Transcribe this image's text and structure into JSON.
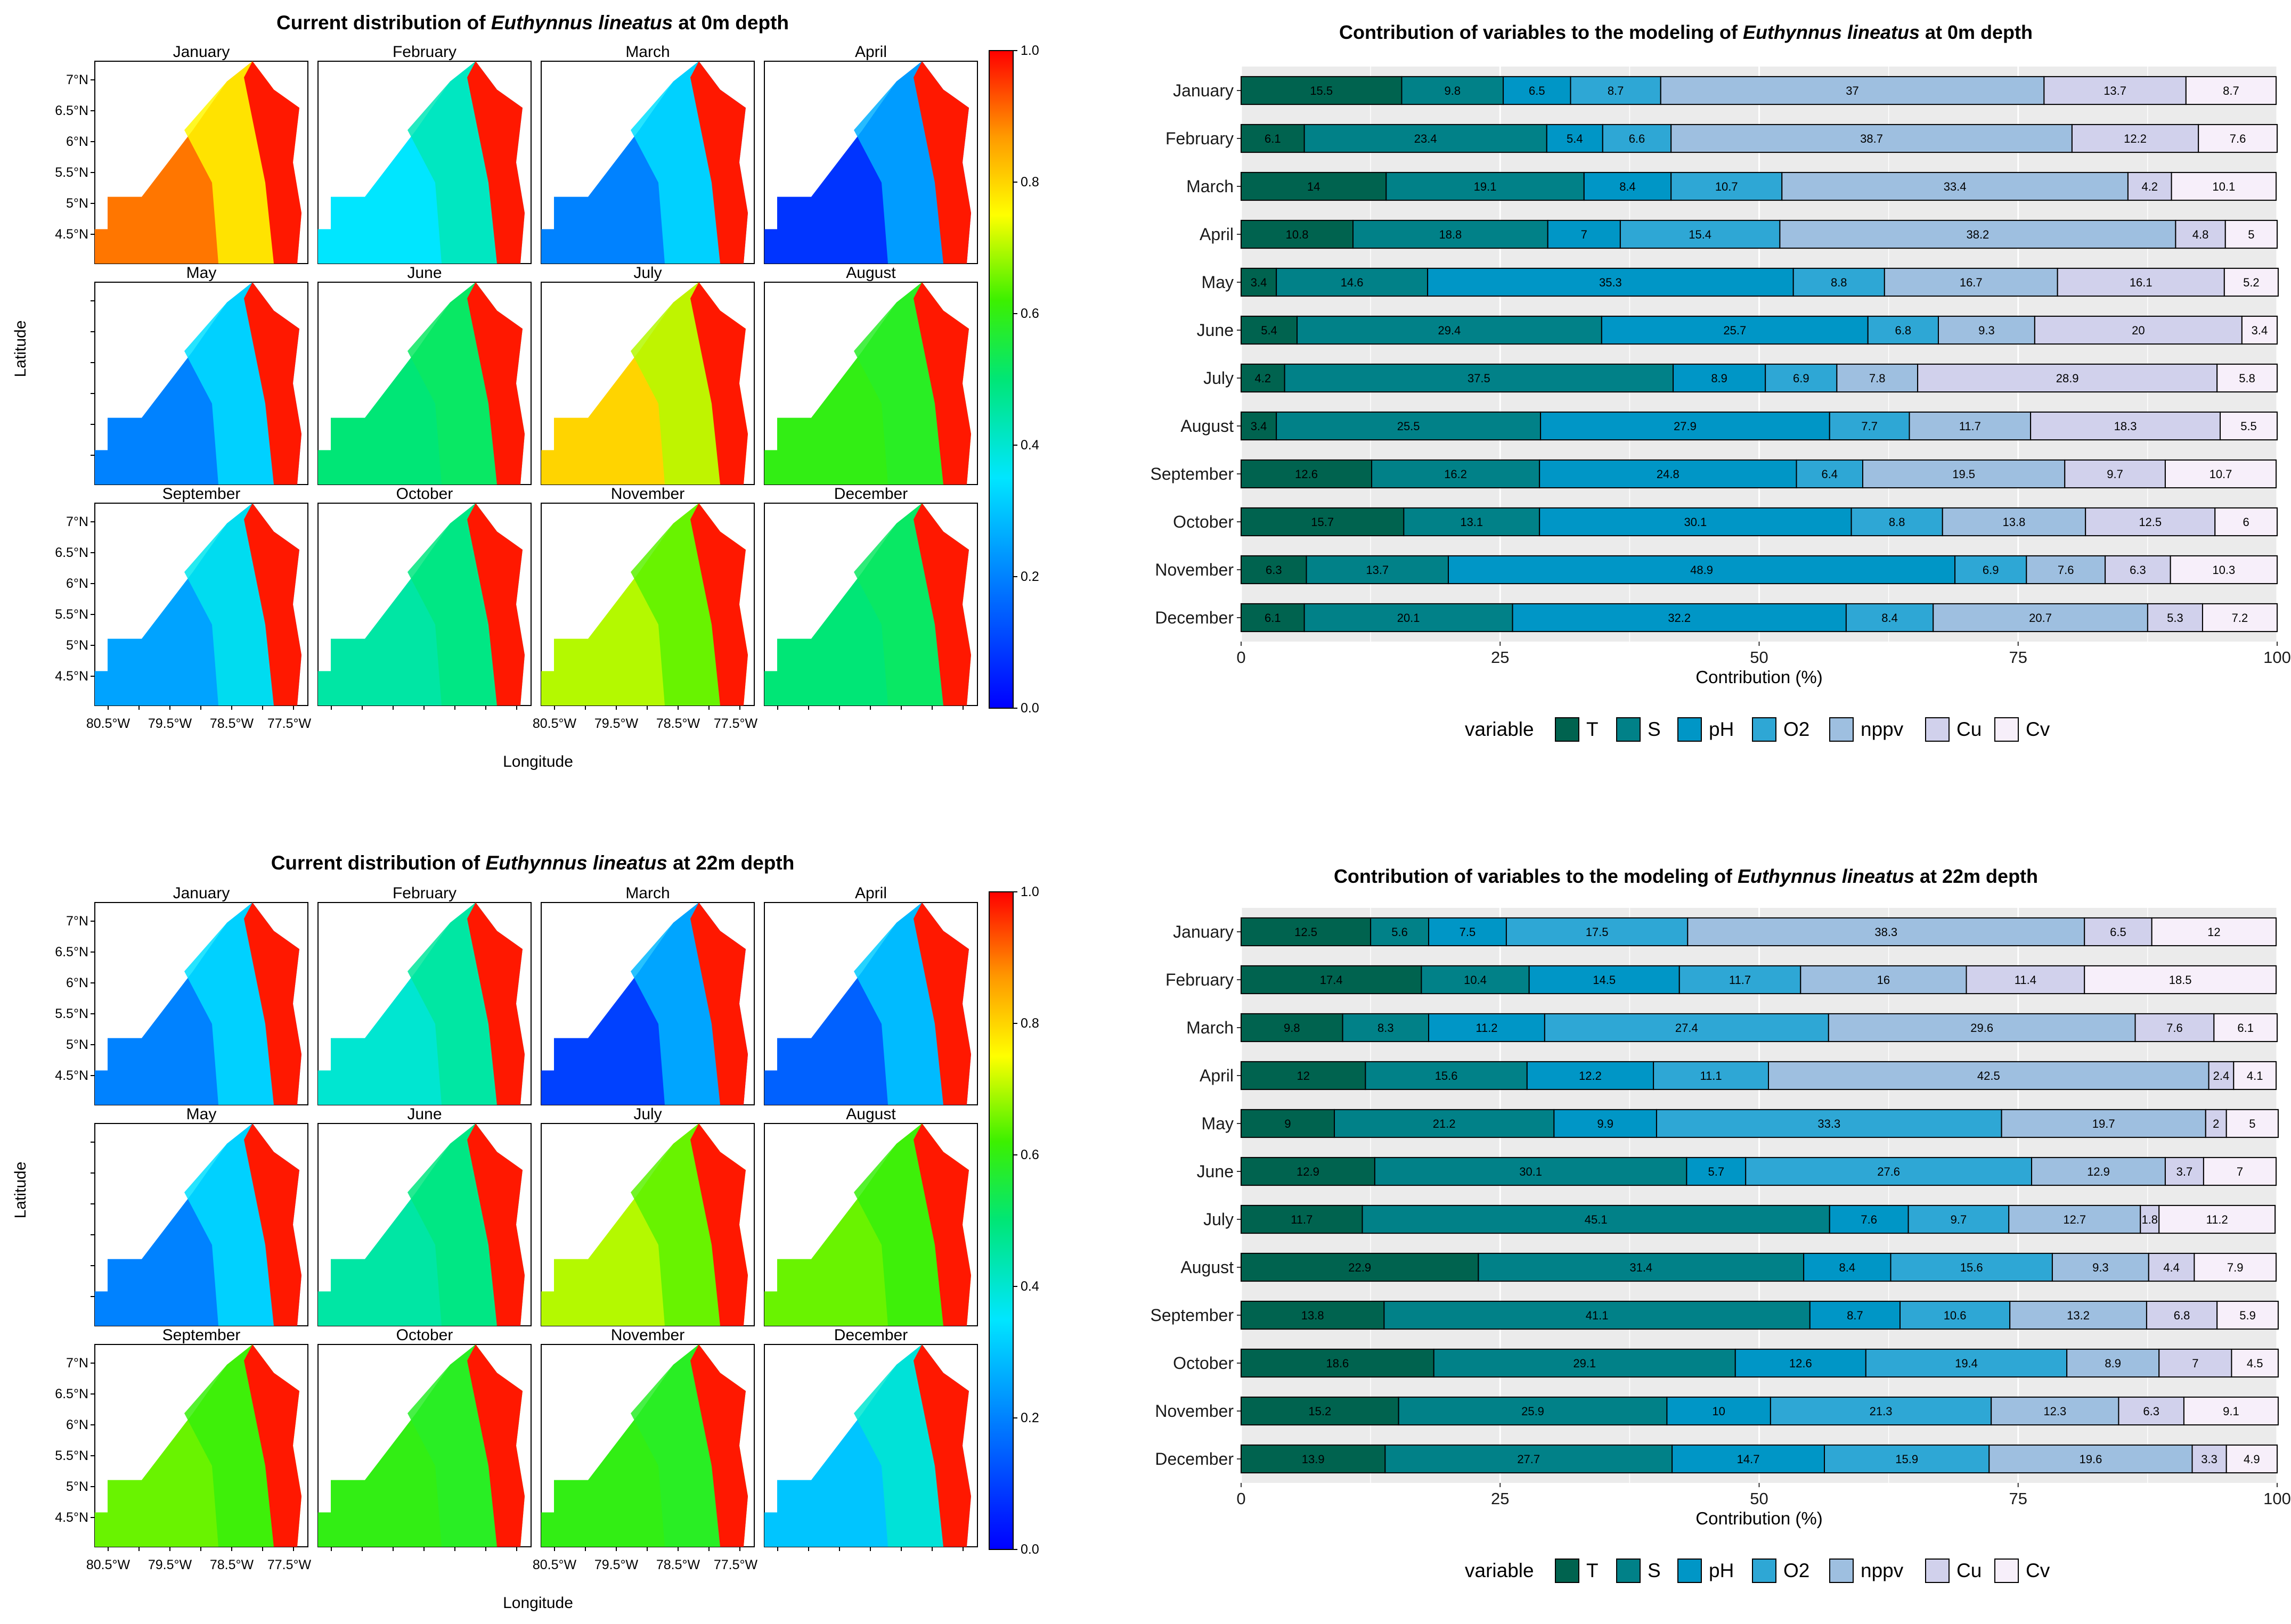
{
  "map_panels": [
    {
      "title_prefix": "Current distribution of ",
      "species": "Euthynnus lineatus",
      "title_suffix": " at 0m depth",
      "xlabel": "Longitude",
      "ylabel": "Latitude",
      "months": [
        "January",
        "February",
        "March",
        "April",
        "May",
        "June",
        "July",
        "August",
        "September",
        "October",
        "November",
        "December"
      ],
      "lat_ticks": [
        "7°N",
        "6.5°N",
        "6°N",
        "5.5°N",
        "5°N",
        "4.5°N"
      ],
      "lon_ticks": [
        "80.5°W",
        "79.5°W",
        "78.5°W",
        "77.5°W"
      ],
      "colorbar_ticks": [
        "1.0",
        "0.8",
        "0.6",
        "0.4",
        "0.2",
        "0.0"
      ],
      "offshore_level": [
        0.9,
        0.35,
        0.2,
        0.08,
        0.2,
        0.5,
        0.8,
        0.6,
        0.25,
        0.45,
        0.7,
        0.5
      ]
    },
    {
      "title_prefix": "Current distribution of ",
      "species": "Euthynnus lineatus",
      "title_suffix": " at 22m depth",
      "xlabel": "Longitude",
      "ylabel": "Latitude",
      "months": [
        "January",
        "February",
        "March",
        "April",
        "May",
        "June",
        "July",
        "August",
        "September",
        "October",
        "November",
        "December"
      ],
      "lat_ticks": [
        "7°N",
        "6.5°N",
        "6°N",
        "5.5°N",
        "5°N",
        "4.5°N"
      ],
      "lon_ticks": [
        "80.5°W",
        "79.5°W",
        "78.5°W",
        "77.5°W"
      ],
      "colorbar_ticks": [
        "1.0",
        "0.8",
        "0.6",
        "0.4",
        "0.2",
        "0.0"
      ],
      "offshore_level": [
        0.2,
        0.4,
        0.1,
        0.15,
        0.2,
        0.45,
        0.7,
        0.65,
        0.65,
        0.6,
        0.6,
        0.3
      ]
    }
  ],
  "chart_data": [
    {
      "type": "bar",
      "orientation": "horizontal",
      "stacked": true,
      "title_prefix": "Contribution of variables to the modeling of ",
      "species": "Euthynnus lineatus",
      "title_suffix": " at 0m depth",
      "xlabel": "Contribution (%)",
      "ylabel": "",
      "xlim": [
        0,
        100
      ],
      "xticks": [
        "0",
        "25",
        "50",
        "75",
        "100"
      ],
      "legend_title": "variable",
      "legend_position": "bottom",
      "categories": [
        "January",
        "February",
        "March",
        "April",
        "May",
        "June",
        "July",
        "August",
        "September",
        "October",
        "November",
        "December"
      ],
      "series": [
        {
          "name": "T",
          "color": "#00634f",
          "values": [
            15.5,
            6.1,
            14,
            10.8,
            3.4,
            5.4,
            4.2,
            3.4,
            12.6,
            15.7,
            6.3,
            6.1
          ]
        },
        {
          "name": "S",
          "color": "#018188",
          "values": [
            9.8,
            23.4,
            19.1,
            18.8,
            14.6,
            29.4,
            37.5,
            25.5,
            16.2,
            13.1,
            13.7,
            20.1
          ]
        },
        {
          "name": "pH",
          "color": "#0096c6",
          "values": [
            6.5,
            5.4,
            8.4,
            7,
            35.3,
            25.7,
            8.9,
            27.9,
            24.8,
            30.1,
            48.9,
            32.2
          ]
        },
        {
          "name": "O2",
          "color": "#2ea7d5",
          "values": [
            8.7,
            6.6,
            10.7,
            15.4,
            8.8,
            6.8,
            6.9,
            7.7,
            6.4,
            8.8,
            6.9,
            8.4
          ]
        },
        {
          "name": "nppv",
          "color": "#9ebfe0",
          "values": [
            37,
            38.7,
            33.4,
            38.2,
            16.7,
            9.3,
            7.8,
            11.7,
            19.5,
            13.8,
            7.6,
            20.7
          ]
        },
        {
          "name": "Cu",
          "color": "#d1d1ec",
          "values": [
            13.7,
            12.2,
            4.2,
            4.8,
            16.1,
            20,
            28.9,
            18.3,
            9.7,
            12.5,
            6.3,
            5.3
          ]
        },
        {
          "name": "Cv",
          "color": "#f7effa",
          "values": [
            8.7,
            7.6,
            10.1,
            5,
            5.2,
            3.4,
            5.8,
            5.5,
            10.7,
            6,
            10.3,
            7.2
          ]
        }
      ]
    },
    {
      "type": "bar",
      "orientation": "horizontal",
      "stacked": true,
      "title_prefix": "Contribution of variables to the modeling of ",
      "species": "Euthynnus lineatus",
      "title_suffix": " at 22m depth",
      "xlabel": "Contribution (%)",
      "ylabel": "",
      "xlim": [
        0,
        100
      ],
      "xticks": [
        "0",
        "25",
        "50",
        "75",
        "100"
      ],
      "legend_title": "variable",
      "legend_position": "bottom",
      "categories": [
        "January",
        "February",
        "March",
        "April",
        "May",
        "June",
        "July",
        "August",
        "September",
        "October",
        "November",
        "December"
      ],
      "series": [
        {
          "name": "T",
          "color": "#00634f",
          "values": [
            12.5,
            17.4,
            9.8,
            12,
            9,
            12.9,
            11.7,
            22.9,
            13.8,
            18.6,
            15.2,
            13.9
          ]
        },
        {
          "name": "S",
          "color": "#018188",
          "values": [
            5.6,
            10.4,
            8.3,
            15.6,
            21.2,
            30.1,
            45.1,
            31.4,
            41.1,
            29.1,
            25.9,
            27.7
          ]
        },
        {
          "name": "pH",
          "color": "#0096c6",
          "values": [
            7.5,
            14.5,
            11.2,
            12.2,
            9.9,
            5.7,
            7.6,
            8.4,
            8.7,
            12.6,
            10,
            14.7
          ]
        },
        {
          "name": "O2",
          "color": "#2ea7d5",
          "values": [
            17.5,
            11.7,
            27.4,
            11.1,
            33.3,
            27.6,
            9.7,
            15.6,
            10.6,
            19.4,
            21.3,
            15.9
          ]
        },
        {
          "name": "nppv",
          "color": "#9ebfe0",
          "values": [
            38.3,
            16,
            29.6,
            42.5,
            19.7,
            12.9,
            12.7,
            9.3,
            13.2,
            8.9,
            12.3,
            19.6
          ]
        },
        {
          "name": "Cu",
          "color": "#d1d1ec",
          "values": [
            6.5,
            11.4,
            7.6,
            2.4,
            2,
            3.7,
            1.8,
            4.4,
            6.8,
            7,
            6.3,
            3.3
          ]
        },
        {
          "name": "Cv",
          "color": "#f7effa",
          "values": [
            12,
            18.5,
            6.1,
            4.1,
            5,
            7,
            11.2,
            7.9,
            5.9,
            4.5,
            9.1,
            4.9
          ]
        }
      ]
    }
  ]
}
